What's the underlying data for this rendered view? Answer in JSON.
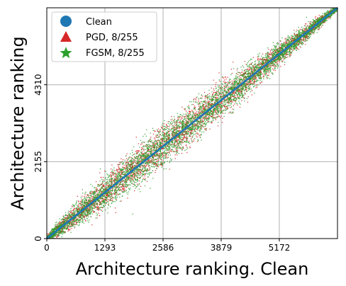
{
  "chart_data": {
    "type": "scatter",
    "xlabel": "Architecture ranking. Clean",
    "ylabel": "Architecture ranking",
    "xlim": [
      0,
      6466
    ],
    "ylim": [
      0,
      6466
    ],
    "xticks": [
      0,
      1293,
      2586,
      3879,
      5172
    ],
    "xtick_labels": [
      "0",
      "1293",
      "2586",
      "3879",
      "5172"
    ],
    "yticks": [
      0,
      2155,
      4310
    ],
    "ytick_labels": [
      "0",
      "2155",
      "4310"
    ],
    "grid": true,
    "legend_position": "top-left",
    "series": [
      {
        "name": "Clean",
        "marker": "circle",
        "color": "#1f77b4",
        "description": "identity, y = x",
        "points": [
          [
            0,
            0
          ],
          [
            6466,
            6466
          ]
        ]
      },
      {
        "name": "PGD, 8/255",
        "marker": "triangle",
        "color": "#d62728",
        "envelope_x": [
          0,
          500,
          1000,
          1500,
          2000,
          2500,
          3000,
          3500,
          4000,
          4500,
          5000,
          5500,
          6000,
          6466
        ],
        "envelope_halfwidth": [
          80,
          260,
          360,
          430,
          470,
          480,
          470,
          440,
          400,
          350,
          290,
          220,
          150,
          60
        ],
        "point_count": 4200
      },
      {
        "name": "FGSM, 8/255",
        "marker": "star",
        "color": "#2ca02c",
        "envelope_x": [
          0,
          500,
          1000,
          1500,
          2000,
          2500,
          3000,
          3500,
          4000,
          4500,
          5000,
          5500,
          6000,
          6466
        ],
        "envelope_halfwidth": [
          80,
          260,
          360,
          430,
          470,
          480,
          470,
          440,
          400,
          350,
          290,
          220,
          150,
          60
        ],
        "point_count": 5200
      }
    ]
  }
}
